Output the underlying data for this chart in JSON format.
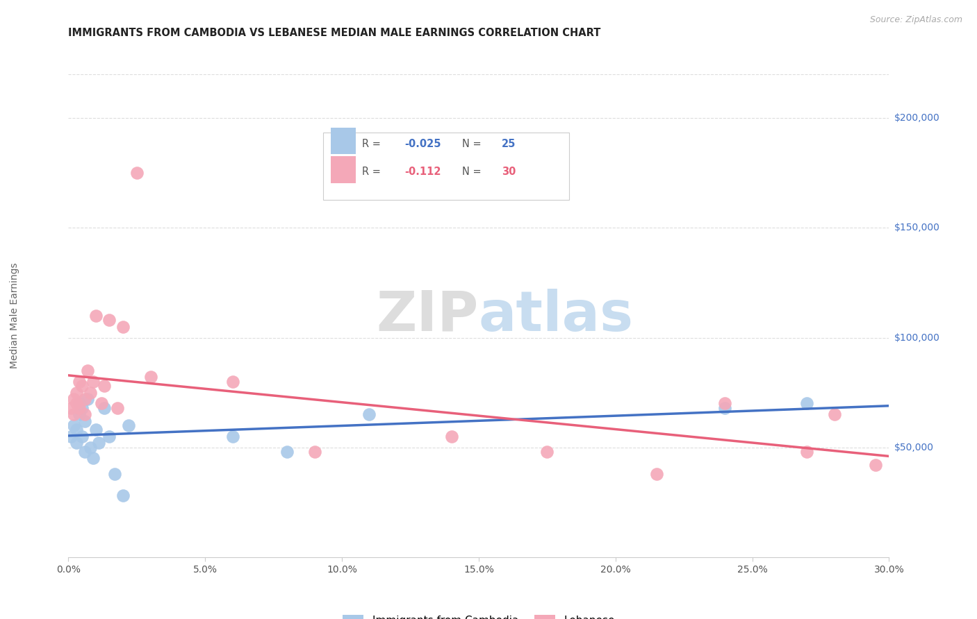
{
  "title": "IMMIGRANTS FROM CAMBODIA VS LEBANESE MEDIAN MALE EARNINGS CORRELATION CHART",
  "source": "Source: ZipAtlas.com",
  "ylabel": "Median Male Earnings",
  "ytick_labels": [
    "$50,000",
    "$100,000",
    "$150,000",
    "$200,000"
  ],
  "ytick_values": [
    50000,
    100000,
    150000,
    200000
  ],
  "xlim": [
    0.0,
    0.3
  ],
  "ylim": [
    0,
    220000
  ],
  "cambodia_x": [
    0.001,
    0.002,
    0.003,
    0.003,
    0.004,
    0.004,
    0.005,
    0.005,
    0.006,
    0.006,
    0.007,
    0.008,
    0.009,
    0.01,
    0.011,
    0.013,
    0.015,
    0.017,
    0.02,
    0.022,
    0.06,
    0.08,
    0.11,
    0.24,
    0.27
  ],
  "cambodia_y": [
    55000,
    60000,
    52000,
    58000,
    65000,
    70000,
    68000,
    55000,
    62000,
    48000,
    72000,
    50000,
    45000,
    58000,
    52000,
    68000,
    55000,
    38000,
    28000,
    60000,
    55000,
    48000,
    65000,
    68000,
    70000
  ],
  "lebanese_x": [
    0.001,
    0.002,
    0.002,
    0.003,
    0.003,
    0.004,
    0.004,
    0.005,
    0.006,
    0.006,
    0.007,
    0.008,
    0.009,
    0.01,
    0.012,
    0.013,
    0.015,
    0.018,
    0.02,
    0.025,
    0.03,
    0.06,
    0.09,
    0.14,
    0.175,
    0.215,
    0.24,
    0.27,
    0.28,
    0.295
  ],
  "lebanese_y": [
    68000,
    72000,
    65000,
    75000,
    70000,
    80000,
    68000,
    78000,
    72000,
    65000,
    85000,
    75000,
    80000,
    110000,
    70000,
    78000,
    108000,
    68000,
    105000,
    175000,
    82000,
    80000,
    48000,
    55000,
    48000,
    38000,
    70000,
    48000,
    65000,
    42000
  ],
  "background_color": "#ffffff",
  "grid_color": "#dddddd",
  "cambodia_line_color": "#4472c4",
  "lebanese_line_color": "#e8607a",
  "cambodia_scatter_color": "#a8c8e8",
  "lebanese_scatter_color": "#f4a8b8",
  "r_cambodia": "-0.025",
  "n_cambodia": "25",
  "r_lebanese": "-0.112",
  "n_lebanese": "30",
  "label_cambodia": "Immigrants from Cambodia",
  "label_lebanese": "Lebanese"
}
